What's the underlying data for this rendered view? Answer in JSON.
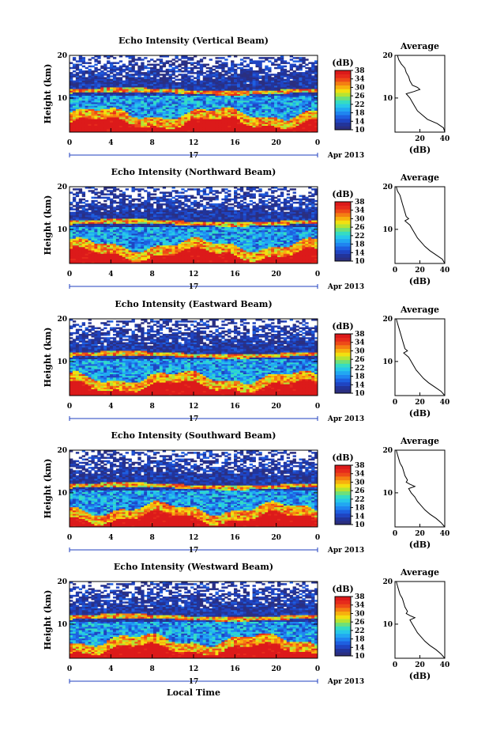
{
  "figure": {
    "xlabel": "Local Time",
    "date_label": "Apr 2013",
    "day_label": "17"
  },
  "colorbar": {
    "unit": "(dB)",
    "ticks": [
      "10",
      "14",
      "18",
      "22",
      "26",
      "30",
      "34",
      "38"
    ],
    "colors": [
      "#2b2f80",
      "#22349a",
      "#1f44c2",
      "#1e5fe0",
      "#1f85f0",
      "#21a8f2",
      "#27c8e8",
      "#35dcc3",
      "#6ee07a",
      "#b6e432",
      "#f2e010",
      "#f7b00e",
      "#f47e12",
      "#ee4a18",
      "#e62a1c",
      "#dc1a1a"
    ]
  },
  "chart_data": [
    {
      "type": "heatmap",
      "title": "Echo Intensity (Vertical Beam)",
      "ylabel": "Height (km)",
      "xlim": [
        0,
        24
      ],
      "ylim": [
        2,
        20
      ],
      "x_ticks": [
        "0",
        "4",
        "8",
        "12",
        "16",
        "20",
        "0"
      ],
      "y_ticks": [
        "20",
        "10"
      ],
      "colorbar_range": [
        10,
        38
      ],
      "profile": {
        "title": "Average",
        "xlabel": "(dB)",
        "xlim": [
          0,
          40
        ],
        "x_ticks": [
          "20",
          "40"
        ],
        "y_ticks": [
          "20",
          "10"
        ],
        "height_km": [
          2,
          3,
          4,
          5,
          6,
          7,
          8,
          9,
          10,
          11,
          11.5,
          12,
          12.5,
          13,
          14,
          15,
          16,
          17,
          18,
          19,
          20
        ],
        "db": [
          40,
          39,
          34,
          26,
          22,
          18,
          16,
          14,
          12,
          9,
          15,
          20,
          18,
          14,
          12,
          11,
          9,
          8,
          5,
          3,
          2
        ]
      }
    },
    {
      "type": "heatmap",
      "title": "Echo Intensity (Northward Beam)",
      "ylabel": "Height (km)",
      "xlim": [
        0,
        24
      ],
      "ylim": [
        2,
        20
      ],
      "x_ticks": [
        "0",
        "4",
        "8",
        "12",
        "16",
        "20",
        "0"
      ],
      "y_ticks": [
        "20",
        "10"
      ],
      "colorbar_range": [
        10,
        38
      ],
      "profile": {
        "title": "Average",
        "xlabel": "(dB)",
        "xlim": [
          0,
          40
        ],
        "x_ticks": [
          "0",
          "20",
          "40"
        ],
        "y_ticks": [
          "20",
          "10"
        ],
        "height_km": [
          2,
          3,
          4,
          5,
          6,
          7,
          8,
          9,
          10,
          11,
          12,
          12.5,
          13,
          14,
          15,
          16,
          17,
          18,
          19,
          20
        ],
        "db": [
          40,
          38,
          33,
          28,
          24,
          21,
          18,
          16,
          14,
          12,
          8,
          11,
          9,
          8,
          7,
          6,
          5,
          4,
          2,
          1
        ]
      }
    },
    {
      "type": "heatmap",
      "title": "Echo Intensity (Eastward Beam)",
      "ylabel": "Height (km)",
      "xlim": [
        0,
        24
      ],
      "ylim": [
        2,
        20
      ],
      "x_ticks": [
        "0",
        "4",
        "8",
        "12",
        "16",
        "20",
        "0"
      ],
      "y_ticks": [
        "20",
        "10"
      ],
      "colorbar_range": [
        10,
        38
      ],
      "profile": {
        "title": "Average",
        "xlabel": "(dB)",
        "xlim": [
          0,
          40
        ],
        "x_ticks": [
          "0",
          "20",
          "40"
        ],
        "y_ticks": [
          "20",
          "10"
        ],
        "height_km": [
          2,
          3,
          4,
          5,
          6,
          7,
          8,
          9,
          10,
          11,
          12,
          12.5,
          13,
          14,
          15,
          16,
          17,
          18,
          19,
          20
        ],
        "db": [
          40,
          37,
          32,
          27,
          23,
          20,
          17,
          15,
          13,
          11,
          7,
          10,
          8,
          7,
          6,
          5,
          4,
          3,
          2,
          1
        ]
      }
    },
    {
      "type": "heatmap",
      "title": "Echo Intensity (Southward Beam)",
      "ylabel": "Height (km)",
      "xlim": [
        0,
        24
      ],
      "ylim": [
        2,
        20
      ],
      "x_ticks": [
        "0",
        "4",
        "8",
        "12",
        "16",
        "20",
        "0"
      ],
      "y_ticks": [
        "20",
        "10"
      ],
      "colorbar_range": [
        10,
        38
      ],
      "profile": {
        "title": "Average",
        "xlabel": "(dB)",
        "xlim": [
          0,
          40
        ],
        "x_ticks": [
          "0",
          "20",
          "40"
        ],
        "y_ticks": [
          "20",
          "10"
        ],
        "height_km": [
          2,
          3,
          4,
          5,
          6,
          7,
          8,
          9,
          10,
          11,
          11.5,
          12,
          12.5,
          13,
          14,
          15,
          16,
          17,
          18,
          19,
          20
        ],
        "db": [
          40,
          37,
          33,
          28,
          24,
          21,
          18,
          16,
          13,
          11,
          16,
          12,
          9,
          10,
          8,
          7,
          6,
          4,
          3,
          2,
          1
        ]
      }
    },
    {
      "type": "heatmap",
      "title": "Echo Intensity (Westward Beam)",
      "ylabel": "Height (km)",
      "xlim": [
        0,
        24
      ],
      "ylim": [
        2,
        20
      ],
      "x_ticks": [
        "0",
        "4",
        "8",
        "12",
        "16",
        "20",
        "0"
      ],
      "y_ticks": [
        "20",
        "10"
      ],
      "colorbar_range": [
        10,
        38
      ],
      "profile": {
        "title": "Average",
        "xlabel": "(dB)",
        "xlim": [
          0,
          40
        ],
        "x_ticks": [
          "0",
          "20",
          "40"
        ],
        "y_ticks": [
          "20",
          "10"
        ],
        "height_km": [
          2,
          3,
          4,
          5,
          6,
          7,
          8,
          9,
          10,
          11,
          11.5,
          12,
          12.5,
          13,
          14,
          15,
          16,
          17,
          18,
          19,
          20
        ],
        "db": [
          40,
          37,
          33,
          28,
          24,
          21,
          18,
          16,
          14,
          12,
          16,
          12,
          9,
          10,
          8,
          7,
          6,
          4,
          3,
          2,
          1
        ]
      }
    }
  ]
}
